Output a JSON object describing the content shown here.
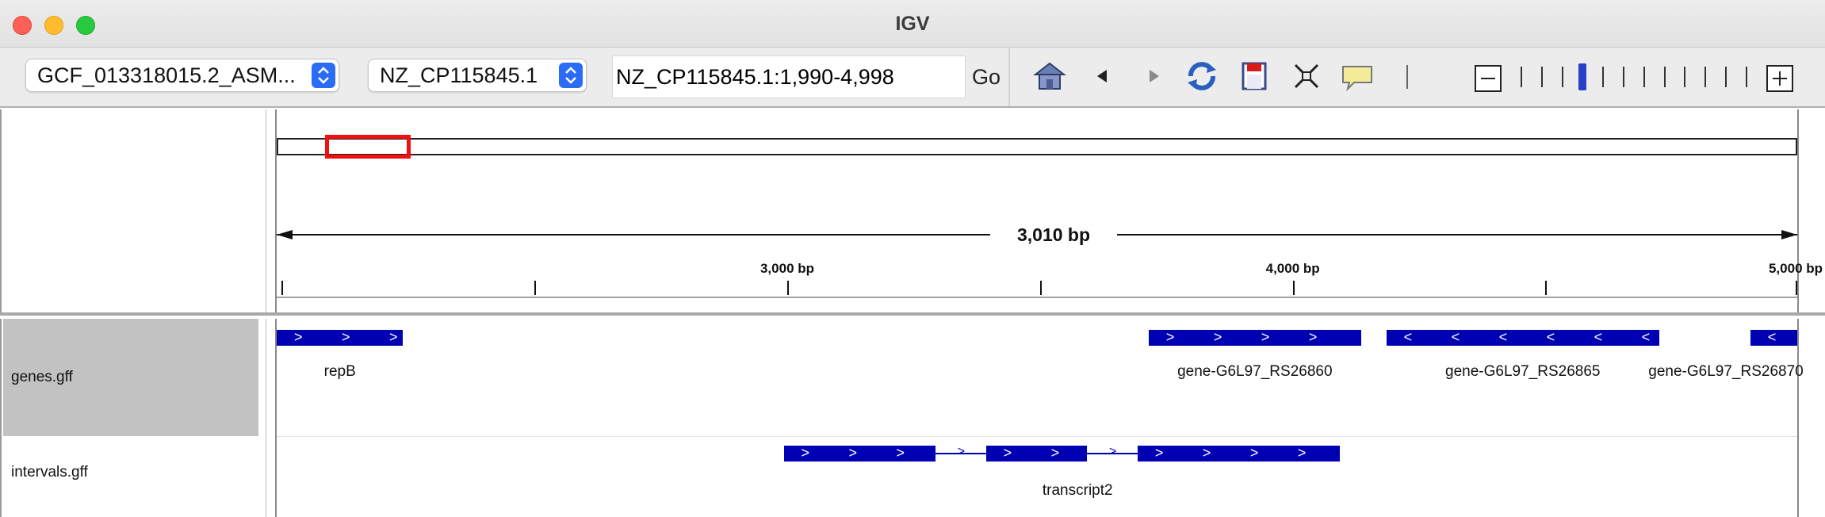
{
  "window": {
    "title": "IGV",
    "controls": [
      "close",
      "minimize",
      "zoom"
    ]
  },
  "toolbar": {
    "genome_select": "GCF_013318015.2_ASM...",
    "chromosome_select": "NZ_CP115845.1",
    "locus": "NZ_CP115845.1:1,990-4,998",
    "go_label": "Go",
    "tools": [
      "home-icon",
      "back-arrow-icon",
      "forward-arrow-icon",
      "refresh-icon",
      "roi-icon",
      "resize-to-window-icon",
      "popup-info-icon"
    ],
    "zoom": {
      "levels": 12,
      "current_level": 3
    }
  },
  "ruler": {
    "span_label": "3,010 bp",
    "range_start": 1990,
    "range_end": 4998,
    "ticks": [
      {
        "value": 2000,
        "label": ""
      },
      {
        "value": 2500,
        "label": ""
      },
      {
        "value": 3000,
        "label": "3,000 bp"
      },
      {
        "value": 3500,
        "label": ""
      },
      {
        "value": 4000,
        "label": "4,000 bp"
      },
      {
        "value": 4500,
        "label": ""
      },
      {
        "value": 5000,
        "label": "5,000 bp"
      }
    ],
    "chromosome_view": {
      "start_fraction": 0.032,
      "end_fraction": 0.088
    }
  },
  "tracks": [
    {
      "name": "genes.gff",
      "selected": true,
      "features": [
        {
          "label": "repB",
          "start": 1990,
          "end": 2240,
          "strand": "+"
        },
        {
          "label": "gene-G6L97_RS26860",
          "start": 3715,
          "end": 4135,
          "strand": "+"
        },
        {
          "label": "gene-G6L97_RS26865",
          "start": 4185,
          "end": 4725,
          "strand": "-"
        },
        {
          "label": "gene-G6L97_RS26870",
          "start": 4905,
          "end": 5010,
          "strand": "-"
        }
      ]
    },
    {
      "name": "intervals.gff",
      "selected": false,
      "features": [
        {
          "label": "transcript2",
          "strand": "+",
          "exons": [
            {
              "start": 2993,
              "end": 3293
            },
            {
              "start": 3393,
              "end": 3593
            },
            {
              "start": 3693,
              "end": 4093
            }
          ]
        }
      ]
    }
  ],
  "colors": {
    "feature": "#0000b2",
    "chrom_window": "#f01010",
    "zoom_thumb": "#2840c8",
    "stepper": "#2b6cf6",
    "selected_track": "#c2c2c2"
  }
}
